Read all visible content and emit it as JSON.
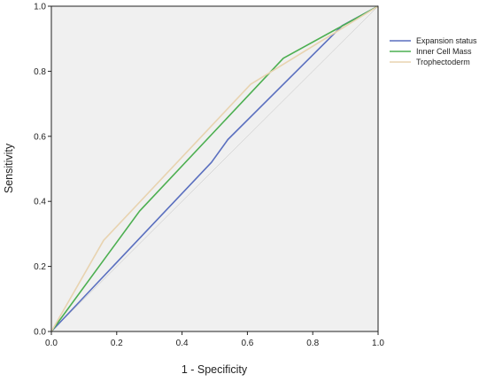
{
  "chart_data": {
    "type": "line",
    "title": "",
    "xlabel": "1 - Specificity",
    "ylabel": "Sensitivity",
    "xlim": [
      0,
      1
    ],
    "ylim": [
      0,
      1
    ],
    "x_ticks": [
      "0.0",
      "0.2",
      "0.4",
      "0.6",
      "0.8",
      "1.0"
    ],
    "y_ticks": [
      "0.0",
      "0.2",
      "0.4",
      "0.6",
      "0.8",
      "1.0"
    ],
    "grid": false,
    "legend_position": "right",
    "plot_background": "#f0f0f0",
    "series": [
      {
        "name": "Expansion status",
        "color": "#5a6fbf",
        "points": [
          [
            0,
            0
          ],
          [
            0.49,
            0.52
          ],
          [
            0.54,
            0.59
          ],
          [
            0.89,
            0.94
          ],
          [
            1,
            1
          ]
        ]
      },
      {
        "name": "Inner Cell Mass",
        "color": "#4caf50",
        "points": [
          [
            0,
            0
          ],
          [
            0.27,
            0.37
          ],
          [
            0.71,
            0.84
          ],
          [
            1,
            1
          ]
        ]
      },
      {
        "name": "Trophectoderm",
        "color": "#e8d3b0",
        "points": [
          [
            0,
            0
          ],
          [
            0.16,
            0.28
          ],
          [
            0.61,
            0.76
          ],
          [
            1,
            1
          ]
        ]
      }
    ]
  }
}
